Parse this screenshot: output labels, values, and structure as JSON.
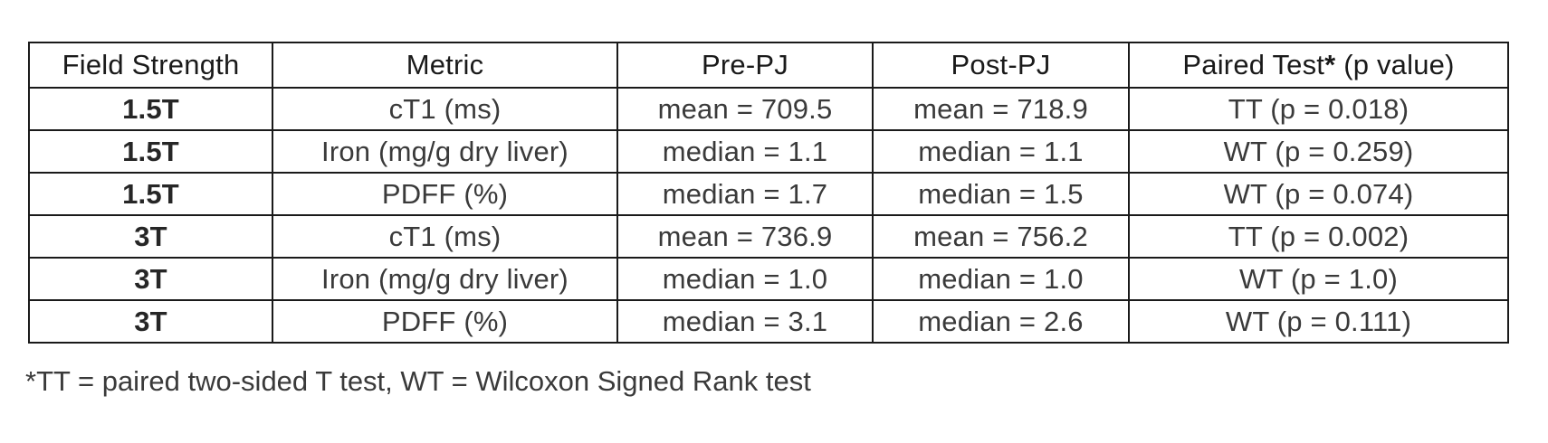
{
  "table": {
    "headers": [
      "Field Strength",
      "Metric",
      "Pre-PJ",
      "Post-PJ",
      "Paired Test* (p value)"
    ],
    "rows": [
      [
        "1.5T",
        "cT1 (ms)",
        "mean =  709.5",
        "mean = 718.9",
        "TT (p = 0.018)"
      ],
      [
        "1.5T",
        "Iron (mg/g dry liver)",
        "median = 1.1",
        "median = 1.1",
        "WT (p = 0.259)"
      ],
      [
        "1.5T",
        "PDFF (%)",
        "median  = 1.7",
        "median  = 1.5",
        "WT (p = 0.074)"
      ],
      [
        "3T",
        "cT1 (ms)",
        "mean = 736.9",
        "mean = 756.2",
        "TT (p = 0.002)"
      ],
      [
        "3T",
        "Iron (mg/g dry liver)",
        "median  = 1.0",
        "median  = 1.0",
        "WT (p = 1.0)"
      ],
      [
        "3T",
        "PDFF (%)",
        "median  = 3.1",
        "median  = 2.6",
        "WT (p = 0.111)"
      ]
    ]
  },
  "footnote": "*TT = paired two-sided T test, WT = Wilcoxon Signed Rank test"
}
